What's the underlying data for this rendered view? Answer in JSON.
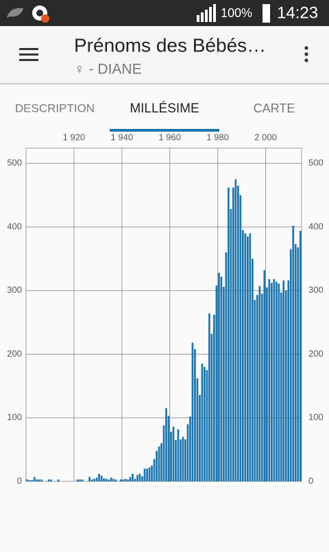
{
  "status_bar": {
    "battery": "100%",
    "time": "14:23"
  },
  "app_bar": {
    "title": "Prénoms des Bébés…",
    "subtitle": "♀ - DIANE"
  },
  "tabs": [
    "DESCRIPTION",
    "MILLÉSIME",
    "CARTE"
  ],
  "chart_data": {
    "type": "bar",
    "x": [
      1900,
      1901,
      1902,
      1903,
      1904,
      1905,
      1906,
      1907,
      1908,
      1909,
      1910,
      1911,
      1912,
      1913,
      1914,
      1915,
      1916,
      1917,
      1918,
      1919,
      1920,
      1921,
      1922,
      1923,
      1924,
      1925,
      1926,
      1927,
      1928,
      1929,
      1930,
      1931,
      1932,
      1933,
      1934,
      1935,
      1936,
      1937,
      1938,
      1939,
      1940,
      1941,
      1942,
      1943,
      1944,
      1945,
      1946,
      1947,
      1948,
      1949,
      1950,
      1951,
      1952,
      1953,
      1954,
      1955,
      1956,
      1957,
      1958,
      1959,
      1960,
      1961,
      1962,
      1963,
      1964,
      1965,
      1966,
      1967,
      1968,
      1969,
      1970,
      1971,
      1972,
      1973,
      1974,
      1975,
      1976,
      1977,
      1978,
      1979,
      1980,
      1981,
      1982,
      1983,
      1984,
      1985,
      1986,
      1987,
      1988,
      1989,
      1990,
      1991,
      1992,
      1993,
      1994,
      1995,
      1996,
      1997,
      1998,
      1999,
      2000,
      2001,
      2002,
      2003,
      2004,
      2005,
      2006,
      2007,
      2008,
      2009,
      2010,
      2011,
      2012,
      2013,
      2014
    ],
    "values": [
      3,
      2,
      2,
      7,
      3,
      3,
      3,
      0,
      0,
      3,
      3,
      0,
      0,
      3,
      0,
      0,
      0,
      0,
      0,
      0,
      0,
      3,
      3,
      3,
      0,
      0,
      7,
      3,
      4,
      6,
      12,
      9,
      5,
      4,
      3,
      6,
      4,
      3,
      0,
      3,
      3,
      4,
      3,
      7,
      12,
      4,
      10,
      12,
      8,
      20,
      20,
      22,
      25,
      35,
      48,
      55,
      60,
      88,
      115,
      103,
      78,
      86,
      65,
      82,
      66,
      70,
      66,
      90,
      102,
      218,
      208,
      162,
      136,
      185,
      180,
      175,
      264,
      232,
      262,
      308,
      328,
      322,
      306,
      360,
      462,
      428,
      462,
      475,
      465,
      450,
      395,
      390,
      385,
      390,
      350,
      285,
      293,
      307,
      295,
      332,
      305,
      318,
      312,
      318,
      314,
      311,
      297,
      316,
      300,
      316,
      365,
      402,
      373,
      368,
      394
    ],
    "color": "#1b75ae",
    "xlim": [
      1900,
      2015
    ],
    "xticks": [
      {
        "value": 1920,
        "label": "1 920"
      },
      {
        "value": 1940,
        "label": "1 940"
      },
      {
        "value": 1960,
        "label": "1 960"
      },
      {
        "value": 1980,
        "label": "1 980"
      },
      {
        "value": 2000,
        "label": "2 000"
      }
    ],
    "ylim": [
      0,
      524
    ],
    "yticks": [
      0,
      100,
      200,
      300,
      400,
      500
    ],
    "grid": true
  }
}
